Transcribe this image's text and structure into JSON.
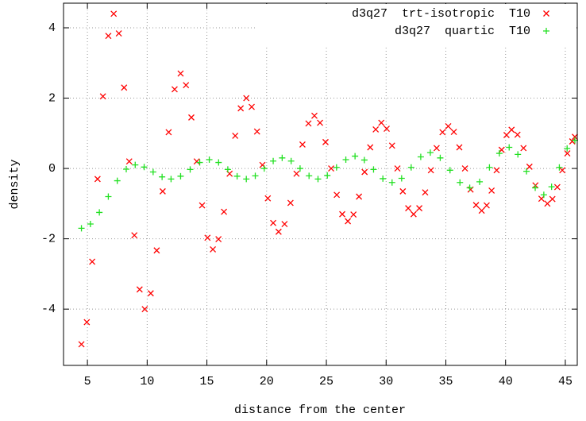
{
  "chart_data": {
    "type": "scatter",
    "xlabel": "distance from the center",
    "ylabel": "density",
    "xlim": [
      3,
      46
    ],
    "ylim": [
      -5.6,
      4.7
    ],
    "xticks": [
      5,
      10,
      15,
      20,
      25,
      30,
      35,
      40,
      45
    ],
    "yticks": [
      -4,
      -2,
      0,
      2,
      4
    ],
    "grid": true,
    "legend": "top-right",
    "series": [
      {
        "name": "d3q27  trt-isotropic  T10",
        "color": "#ff0000",
        "marker": "x",
        "x": [
          4.5,
          4.95,
          5.4,
          5.85,
          6.3,
          6.75,
          7.2,
          7.63,
          8.07,
          8.5,
          8.93,
          9.37,
          9.8,
          10.3,
          10.8,
          11.3,
          11.8,
          12.3,
          12.8,
          13.25,
          13.7,
          14.15,
          14.6,
          15.05,
          15.5,
          15.97,
          16.43,
          16.9,
          17.37,
          17.83,
          18.3,
          18.75,
          19.2,
          19.65,
          20.1,
          20.55,
          21,
          21.5,
          22,
          22.5,
          23,
          23.5,
          24,
          24.47,
          24.93,
          25.4,
          25.87,
          26.33,
          26.8,
          27.27,
          27.73,
          28.2,
          28.67,
          29.13,
          29.6,
          30.05,
          30.5,
          30.95,
          31.4,
          31.85,
          32.3,
          32.78,
          33.27,
          33.75,
          34.23,
          34.72,
          35.2,
          35.67,
          36.13,
          36.6,
          37.07,
          37.53,
          38,
          38.42,
          38.83,
          39.25,
          39.67,
          40.08,
          40.5,
          41,
          41.5,
          42,
          42.5,
          43,
          43.5,
          43.92,
          44.33,
          44.75,
          45.17,
          45.58,
          45.8
        ],
        "values": [
          -5,
          -4.37,
          -2.65,
          -0.3,
          2.05,
          3.77,
          4.4,
          3.84,
          2.3,
          0.2,
          -1.9,
          -3.44,
          -4,
          -3.55,
          -2.33,
          -0.65,
          1.03,
          2.25,
          2.7,
          2.37,
          1.45,
          0.2,
          -1.05,
          -1.97,
          -2.3,
          -2.01,
          -1.23,
          -0.15,
          0.93,
          1.71,
          2,
          1.75,
          1.05,
          0.1,
          -0.85,
          -1.55,
          -1.8,
          -1.58,
          -0.98,
          -0.15,
          0.68,
          1.28,
          1.5,
          1.3,
          0.75,
          0,
          -0.75,
          -1.3,
          -1.5,
          -1.31,
          -0.8,
          -0.1,
          0.6,
          1.11,
          1.3,
          1.13,
          0.65,
          0,
          -0.65,
          -1.13,
          -1.3,
          -1.13,
          -0.68,
          -0.05,
          0.58,
          1.03,
          1.2,
          1.04,
          0.6,
          0,
          -0.6,
          -1.04,
          -1.2,
          -1.05,
          -0.63,
          -0.05,
          0.53,
          0.95,
          1.1,
          0.96,
          0.58,
          0.05,
          -0.48,
          -0.86,
          -1,
          -0.87,
          -0.53,
          -0.05,
          0.43,
          0.77,
          0.9
        ]
      },
      {
        "name": "d3q27  quartic  T10",
        "color": "#22e022",
        "marker": "+",
        "x": [
          4.5,
          5.25,
          6,
          6.75,
          7.5,
          8.25,
          9,
          9.75,
          10.5,
          11.25,
          12,
          12.8,
          13.6,
          14.4,
          15.2,
          15.98,
          16.75,
          17.53,
          18.3,
          19.05,
          19.8,
          20.55,
          21.3,
          22.05,
          22.8,
          23.55,
          24.3,
          25.08,
          25.85,
          26.63,
          27.4,
          28.18,
          28.95,
          29.73,
          30.5,
          31.3,
          32.1,
          32.9,
          33.7,
          34.53,
          35.35,
          36.18,
          37,
          37.83,
          38.65,
          39.48,
          40.3,
          41.03,
          41.75,
          42.48,
          43.2,
          43.85,
          44.5,
          45.15,
          45.8
        ],
        "values": [
          -1.7,
          -1.58,
          -1.25,
          -0.8,
          -0.35,
          -0.02,
          0.1,
          0.04,
          -0.1,
          -0.24,
          -0.3,
          -0.22,
          -0.03,
          0.17,
          0.25,
          0.17,
          -0.03,
          -0.22,
          -0.3,
          -0.21,
          0,
          0.21,
          0.3,
          0.21,
          0,
          -0.21,
          -0.3,
          -0.2,
          0.03,
          0.25,
          0.35,
          0.24,
          -0.03,
          -0.29,
          -0.4,
          -0.28,
          0.03,
          0.33,
          0.45,
          0.3,
          -0.05,
          -0.4,
          -0.55,
          -0.38,
          0.03,
          0.43,
          0.6,
          0.4,
          -0.08,
          -0.55,
          -0.75,
          -0.52,
          0.03,
          0.57,
          0.8
        ]
      }
    ]
  }
}
